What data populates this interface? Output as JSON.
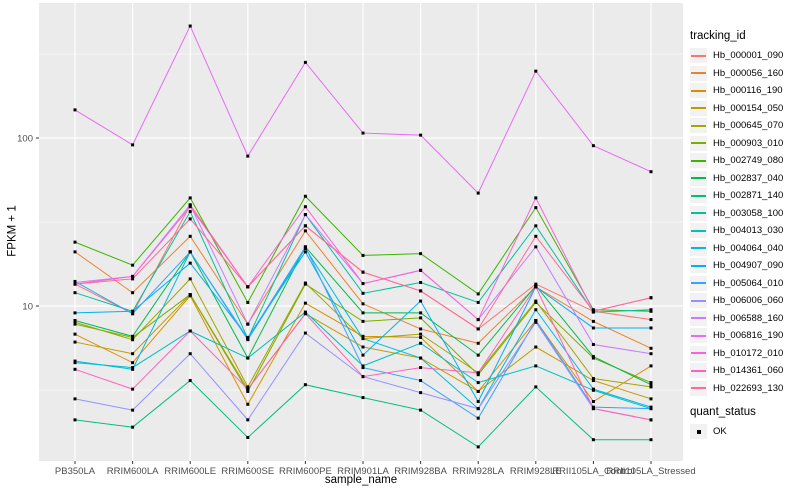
{
  "chart_data": {
    "type": "line",
    "title": "",
    "xlabel": "sample_name",
    "ylabel": "FPKM + 1",
    "y_scale": "log10",
    "y_axis_ticks": [
      100,
      10
    ],
    "y_minor_gridlines": [
      316,
      31.6,
      3.16
    ],
    "ylim_log_range": [
      1.1,
      620
    ],
    "grid": true,
    "legend_position": "right",
    "point_shape": "square",
    "point_color": "#000000",
    "colors": {
      "panel_bg": "#EBEBEB",
      "gridline": "#FFFFFF",
      "tick_text": "#4D4D4D",
      "tick_mark": "#333333",
      "axis_title": "#000000",
      "legend_key_bg": "#F2F2F2"
    },
    "categories": [
      "PB350LA",
      "RRIM600LA",
      "RRIM600LE",
      "RRIM600SE",
      "RRIM600PE",
      "RRIM901LA",
      "RRIM928BA",
      "RRIM928LA",
      "RRIM928LE",
      "RRII105LA_Control",
      "RRII105LA_Stressed"
    ],
    "legend": {
      "title": "tracking_id"
    },
    "quant_legend": {
      "title": "quant_status",
      "items": [
        {
          "label": "OK",
          "shape": "square",
          "color": "#000000"
        }
      ]
    },
    "series": [
      {
        "name": "Hb_000001_090",
        "color": "#F8766D",
        "values": [
          13.5,
          9.0,
          40,
          13,
          30,
          15.9,
          12.3,
          7.3,
          13.5,
          9.3,
          8.3
        ]
      },
      {
        "name": "Hb_000056_160",
        "color": "#EA8331",
        "values": [
          21,
          12,
          26,
          7.8,
          28,
          10.3,
          7.3,
          6.0,
          13,
          8.1,
          5.6
        ]
      },
      {
        "name": "Hb_000116_190",
        "color": "#D89000",
        "values": [
          6.8,
          4.6,
          11.5,
          2.6,
          10.4,
          6.6,
          6.5,
          3.1,
          8.2,
          2.7,
          4.4
        ]
      },
      {
        "name": "Hb_000154_050",
        "color": "#C09B00",
        "values": [
          6.1,
          5.2,
          11.7,
          3.2,
          9.0,
          5.7,
          4.9,
          3.1,
          5.7,
          3.6,
          2.8
        ]
      },
      {
        "name": "Hb_000645_070",
        "color": "#A3A500",
        "values": [
          8.0,
          6.3,
          14.5,
          3.3,
          13.7,
          6.4,
          6.8,
          4.0,
          10.7,
          3.7,
          3.3
        ]
      },
      {
        "name": "Hb_000903_010",
        "color": "#7CAE00",
        "values": [
          7.8,
          6.5,
          11.7,
          3.1,
          13.5,
          8.1,
          8.5,
          3.9,
          10.5,
          4.9,
          3.5
        ]
      },
      {
        "name": "Hb_002749_080",
        "color": "#39B600",
        "values": [
          24,
          17.5,
          44,
          10.5,
          45,
          20,
          20.5,
          11.8,
          38.5,
          9.5,
          9.3
        ]
      },
      {
        "name": "Hb_002837_040",
        "color": "#00BB4E",
        "values": [
          8.2,
          6.6,
          21,
          4.9,
          22.5,
          9.1,
          9.1,
          5.1,
          13.2,
          5.0,
          3.4
        ]
      },
      {
        "name": "Hb_002871_140",
        "color": "#00BF7D",
        "values": [
          2.1,
          1.9,
          3.6,
          1.65,
          3.4,
          2.85,
          2.4,
          1.45,
          3.3,
          1.6,
          1.6
        ]
      },
      {
        "name": "Hb_003058_100",
        "color": "#00C1A3",
        "values": [
          12,
          9.3,
          36.5,
          6.4,
          35,
          11.9,
          13.8,
          10.5,
          30,
          9.2,
          9.5
        ]
      },
      {
        "name": "Hb_004013_030",
        "color": "#00BFC4",
        "values": [
          4.6,
          4.3,
          7.1,
          4.9,
          9.2,
          4.4,
          6.0,
          3.5,
          4.4,
          3.15,
          2.45
        ]
      },
      {
        "name": "Hb_004064_040",
        "color": "#00BAE0",
        "values": [
          4.7,
          4.2,
          21,
          6.3,
          22,
          6.4,
          4.9,
          2.45,
          9.5,
          3.2,
          2.5
        ]
      },
      {
        "name": "Hb_004907_090",
        "color": "#00B0F6",
        "values": [
          9.1,
          9.3,
          18,
          6.5,
          21,
          5.1,
          10.7,
          2.7,
          13,
          7.4,
          7.4
        ]
      },
      {
        "name": "Hb_005064_010",
        "color": "#35A2FF",
        "values": [
          14,
          9.0,
          21,
          6.4,
          22.5,
          4.3,
          3.6,
          2.15,
          8.2,
          2.5,
          2.45
        ]
      },
      {
        "name": "Hb_006006_060",
        "color": "#9590FF",
        "values": [
          2.8,
          2.4,
          5.2,
          2.1,
          6.9,
          3.8,
          3.05,
          2.45,
          8.0,
          2.45,
          2.1
        ]
      },
      {
        "name": "Hb_006588_160",
        "color": "#C77CFF",
        "values": [
          13.8,
          15,
          40,
          7.8,
          35,
          13.6,
          16.3,
          8.3,
          22.5,
          5.9,
          5.2
        ]
      },
      {
        "name": "Hb_006816_190",
        "color": "#E76BF3",
        "values": [
          147,
          91,
          464,
          78,
          282,
          107,
          104,
          47,
          250,
          90,
          63
        ]
      },
      {
        "name": "Hb_010172_010",
        "color": "#FA62DB",
        "values": [
          13.5,
          15,
          39,
          13,
          39,
          13.6,
          16.3,
          8.3,
          44,
          9.3,
          11.2
        ]
      },
      {
        "name": "Hb_014361_060",
        "color": "#FF62BC",
        "values": [
          4.2,
          3.2,
          7.1,
          3.2,
          9.0,
          3.8,
          4.3,
          4.0,
          13,
          2.45,
          2.1
        ]
      },
      {
        "name": "Hb_022693_130",
        "color": "#FF6A98",
        "values": [
          13.5,
          14.5,
          33,
          13,
          30,
          15.9,
          12.3,
          7.3,
          26,
          9.3,
          11.2
        ]
      }
    ]
  }
}
